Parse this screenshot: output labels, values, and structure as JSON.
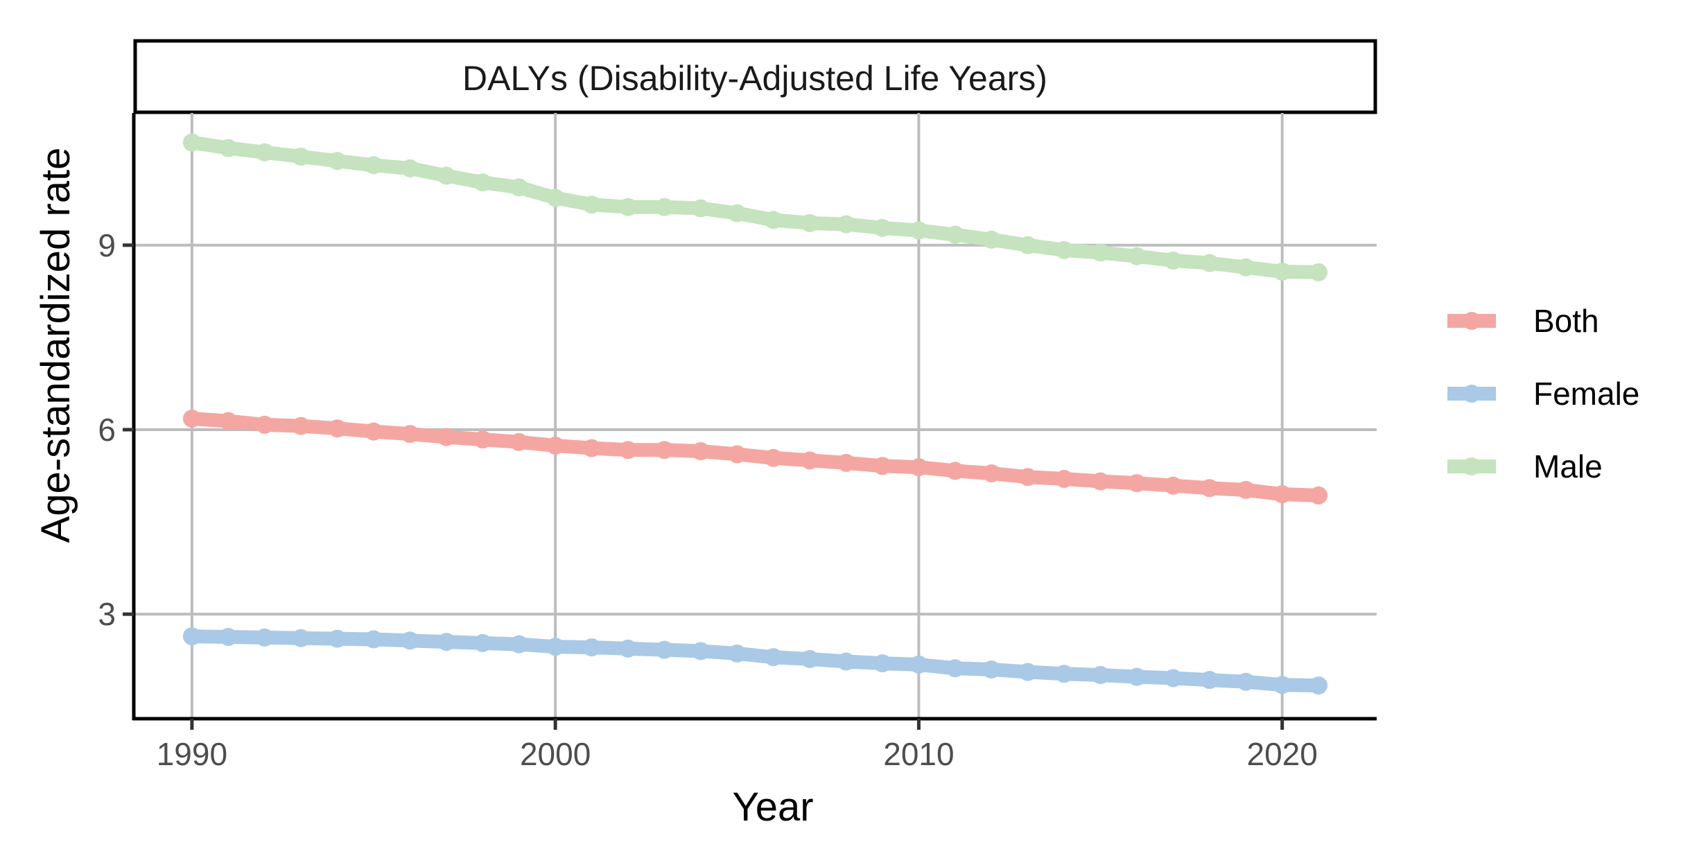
{
  "chart_data": {
    "type": "line",
    "title": "DALYs (Disability-Adjusted Life Years)",
    "xlabel": "Year",
    "ylabel": "Age-standardized rate",
    "x": [
      1990,
      1991,
      1992,
      1993,
      1994,
      1995,
      1996,
      1997,
      1998,
      1999,
      2000,
      2001,
      2002,
      2003,
      2004,
      2005,
      2006,
      2007,
      2008,
      2009,
      2010,
      2011,
      2012,
      2013,
      2014,
      2015,
      2016,
      2017,
      2018,
      2019,
      2020,
      2021
    ],
    "xlim": [
      1988.4,
      2022.6
    ],
    "ylim": [
      1.3,
      11.15
    ],
    "xticks": [
      1990,
      2000,
      2010,
      2020
    ],
    "xtick_labels": [
      "1990",
      "2000",
      "2010",
      "2020"
    ],
    "yticks": [
      3,
      6,
      9
    ],
    "ytick_labels": [
      "3",
      "6",
      "9"
    ],
    "grid": true,
    "legend_position": "right",
    "series": [
      {
        "name": "Both",
        "color": "#F4A7A2",
        "values": [
          6.18,
          6.14,
          6.08,
          6.06,
          6.02,
          5.97,
          5.93,
          5.88,
          5.84,
          5.8,
          5.74,
          5.7,
          5.67,
          5.67,
          5.65,
          5.6,
          5.54,
          5.5,
          5.46,
          5.41,
          5.39,
          5.33,
          5.29,
          5.23,
          5.2,
          5.16,
          5.13,
          5.09,
          5.05,
          5.02,
          4.95,
          4.93
        ]
      },
      {
        "name": "Female",
        "color": "#A9C9E6",
        "values": [
          2.64,
          2.63,
          2.62,
          2.61,
          2.6,
          2.59,
          2.57,
          2.55,
          2.53,
          2.51,
          2.47,
          2.46,
          2.44,
          2.42,
          2.4,
          2.36,
          2.3,
          2.27,
          2.23,
          2.2,
          2.18,
          2.12,
          2.1,
          2.06,
          2.03,
          2.01,
          1.98,
          1.96,
          1.93,
          1.9,
          1.85,
          1.84
        ]
      },
      {
        "name": "Male",
        "color": "#C5E3BE",
        "values": [
          10.67,
          10.58,
          10.51,
          10.44,
          10.37,
          10.3,
          10.25,
          10.13,
          10.02,
          9.94,
          9.77,
          9.66,
          9.62,
          9.62,
          9.6,
          9.52,
          9.41,
          9.36,
          9.34,
          9.28,
          9.24,
          9.17,
          9.09,
          9.0,
          8.92,
          8.88,
          8.82,
          8.75,
          8.71,
          8.64,
          8.57,
          8.56
        ]
      }
    ]
  }
}
